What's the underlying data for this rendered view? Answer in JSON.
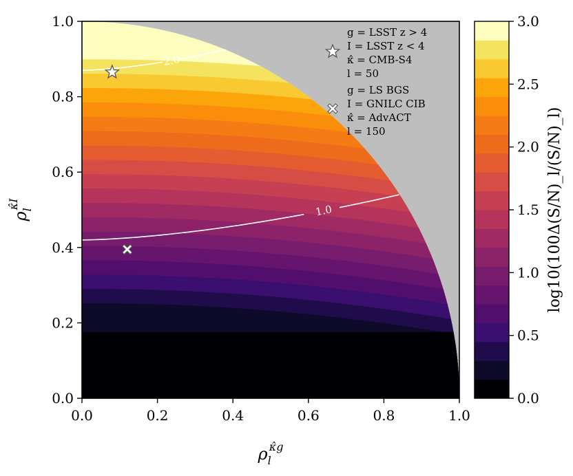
{
  "chart_data": {
    "type": "contour",
    "xlabel": "ρ_l^{κ̂g}",
    "ylabel": "ρ_l^{κ̂I}",
    "colorbar_label": "log10(100Δ(S/N)_l/(S/N)_l)",
    "xlim": [
      0.0,
      1.0
    ],
    "ylim": [
      0.0,
      1.0
    ],
    "x_ticks": [
      "0.0",
      "0.2",
      "0.4",
      "0.6",
      "0.8",
      "1.0"
    ],
    "y_ticks": [
      "0.0",
      "0.2",
      "0.4",
      "0.6",
      "0.8",
      "1.0"
    ],
    "colorbar_range": [
      0.0,
      3.0
    ],
    "colorbar_ticks": [
      "0.0",
      "0.5",
      "1.0",
      "1.5",
      "2.0",
      "2.5",
      "3.0"
    ],
    "levels": [
      0.0,
      0.15,
      0.3,
      0.45,
      0.6,
      0.75,
      0.9,
      1.05,
      1.2,
      1.35,
      1.5,
      1.65,
      1.8,
      1.95,
      2.1,
      2.25,
      2.4,
      2.55,
      2.7,
      2.85,
      3.0
    ],
    "level_colors": [
      "#000004",
      "#0d0a2a",
      "#200c4a",
      "#3b0f70",
      "#520e6d",
      "#65156e",
      "#781c6d",
      "#8c2369",
      "#a02a63",
      "#b4345c",
      "#c63f52",
      "#d64d46",
      "#e55c30",
      "#ee6b1c",
      "#f57c15",
      "#fa8e0b",
      "#fca50a",
      "#f9c932",
      "#f4e35f",
      "#fcfdbf"
    ],
    "region_limit": "x^2 + y^2 ≤ 1",
    "excluded_region_color": "#bebebe",
    "contour_lines": [
      {
        "label": "1.0",
        "y_at_x0": 0.42,
        "y_at_end": 0.54,
        "x_end": 0.84
      },
      {
        "label": "2.0",
        "y_at_x0": 0.87,
        "y_at_end": 0.925,
        "x_end": 0.38
      }
    ],
    "markers": [
      {
        "symbol": "star",
        "x": 0.08,
        "y": 0.865
      },
      {
        "symbol": "cross",
        "x": 0.12,
        "y": 0.395
      }
    ],
    "legend": [
      {
        "symbol": "star",
        "lines": [
          "g = LSST  z > 4",
          "I = LSST  z < 4",
          "κ̂ = CMB-S4",
          "l = 50"
        ]
      },
      {
        "symbol": "cross",
        "lines": [
          "g = LS BGS",
          "I = GNILC CIB",
          "κ̂ = AdvACT",
          "l = 150"
        ]
      }
    ],
    "legend_placement": "top-right",
    "grid": false
  }
}
